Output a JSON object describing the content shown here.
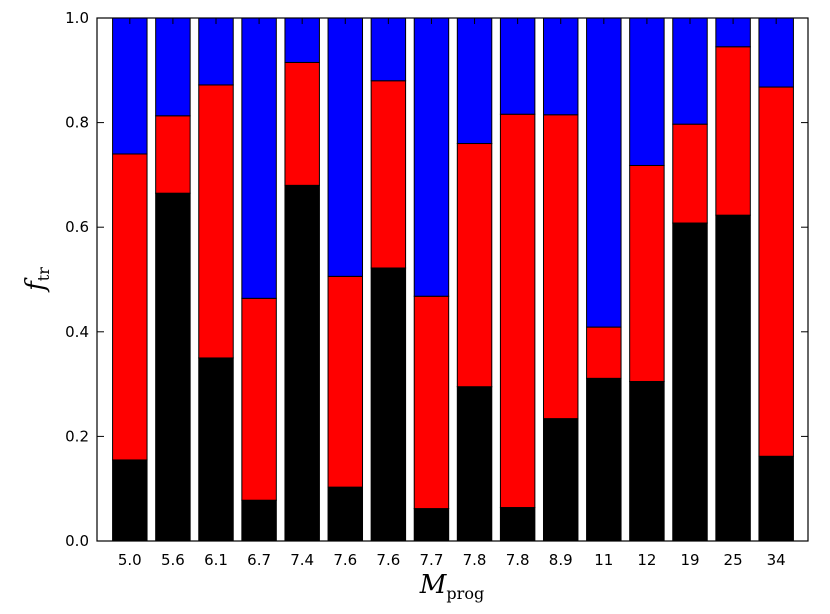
{
  "chart_data": {
    "type": "bar",
    "stacked": true,
    "categories": [
      "5.0",
      "5.6",
      "6.1",
      "6.7",
      "7.4",
      "7.6",
      "7.6",
      "7.7",
      "7.8",
      "7.8",
      "8.9",
      "11",
      "12",
      "19",
      "25",
      "34"
    ],
    "series": [
      {
        "color": "#000000",
        "values": [
          0.155,
          0.665,
          0.35,
          0.078,
          0.68,
          0.103,
          0.522,
          0.062,
          0.295,
          0.064,
          0.234,
          0.311,
          0.305,
          0.608,
          0.623,
          0.162
        ]
      },
      {
        "color": "#ff0000",
        "values": [
          0.585,
          0.148,
          0.522,
          0.386,
          0.235,
          0.403,
          0.358,
          0.406,
          0.465,
          0.752,
          0.581,
          0.098,
          0.413,
          0.189,
          0.322,
          0.706
        ]
      },
      {
        "color": "#0000ff",
        "values": [
          0.26,
          0.187,
          0.128,
          0.536,
          0.085,
          0.494,
          0.12,
          0.532,
          0.24,
          0.184,
          0.185,
          0.591,
          0.282,
          0.203,
          0.055,
          0.132
        ]
      }
    ],
    "ylim": [
      0.0,
      1.0
    ],
    "yticks": [
      "0.0",
      "0.2",
      "0.4",
      "0.6",
      "0.8",
      "1.0"
    ],
    "ylabel": {
      "main": "f",
      "sub": "tr"
    },
    "xlabel": {
      "main": "M",
      "sub": "prog"
    }
  }
}
